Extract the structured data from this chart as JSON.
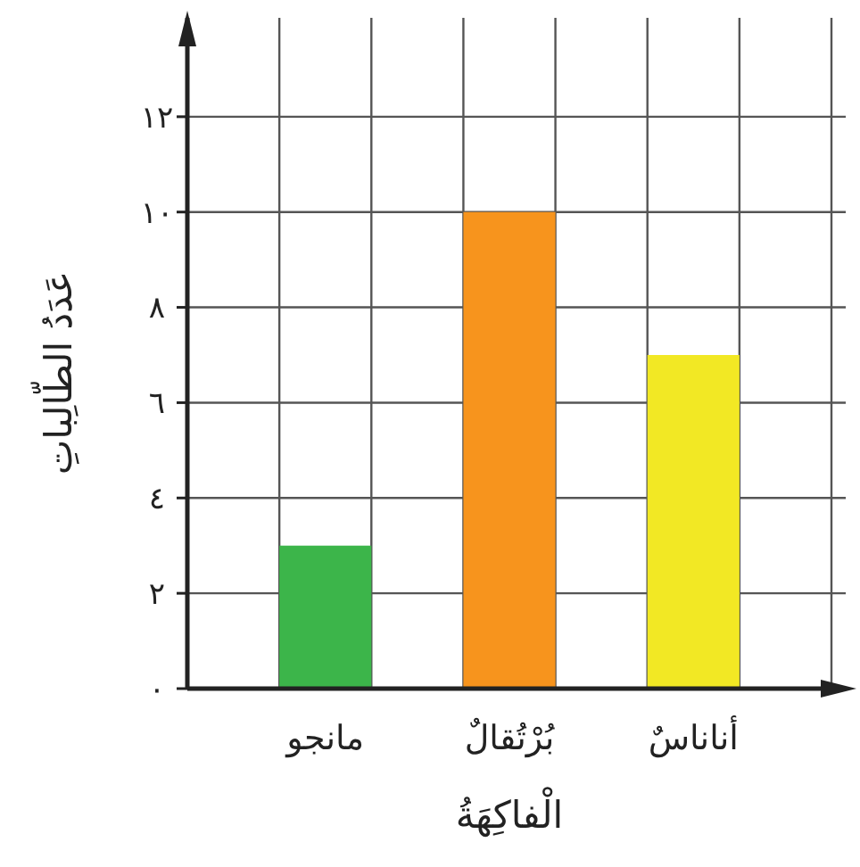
{
  "chart_data": {
    "type": "bar",
    "xlabel": "الْفاكِهَةُ",
    "ylabel": "عَدَدُ الطّالِباتِ",
    "categories": [
      "مانجو",
      "بُرْتُقالٌ",
      "أناناسٌ"
    ],
    "values": [
      3,
      10,
      7
    ],
    "colors": [
      "#3cb54a",
      "#f7941d",
      "#f2e824"
    ],
    "ylim": [
      0,
      14
    ],
    "yticks": [
      {
        "value": 0,
        "label": "٠"
      },
      {
        "value": 2,
        "label": "٢"
      },
      {
        "value": 4,
        "label": "٤"
      },
      {
        "value": 6,
        "label": "٦"
      },
      {
        "value": 8,
        "label": "٨"
      },
      {
        "value": 10,
        "label": "١٠"
      },
      {
        "value": 12,
        "label": "١٢"
      }
    ],
    "grid": true
  }
}
